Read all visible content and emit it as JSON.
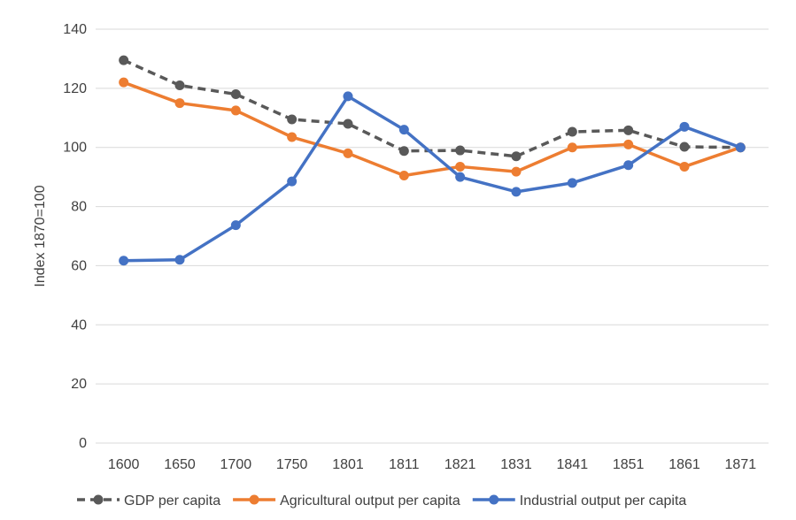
{
  "chart_data": {
    "type": "line",
    "title": "",
    "xlabel": "",
    "ylabel": "Index 1870=100",
    "ylim": [
      0,
      140
    ],
    "yticks": [
      0,
      20,
      40,
      60,
      80,
      100,
      120,
      140
    ],
    "grid": true,
    "legend_position": "bottom",
    "categories": [
      "1600",
      "1650",
      "1700",
      "1750",
      "1801",
      "1811",
      "1821",
      "1831",
      "1841",
      "1851",
      "1861",
      "1871"
    ],
    "series": [
      {
        "name": "GDP per capita",
        "color": "#595959",
        "dashed": true,
        "values": [
          129.5,
          121,
          118,
          109.5,
          108,
          98.8,
          99,
          97,
          105.3,
          105.8,
          100.2,
          100
        ]
      },
      {
        "name": "Agricultural output per capita",
        "color": "#ED7D31",
        "dashed": false,
        "values": [
          122,
          115,
          112.5,
          103.5,
          98,
          90.5,
          93.5,
          91.8,
          100,
          101,
          93.5,
          100
        ]
      },
      {
        "name": "Industrial output per capita",
        "color": "#4472C4",
        "dashed": false,
        "values": [
          61.7,
          62,
          73.7,
          88.5,
          117.3,
          106,
          90,
          85,
          88,
          94,
          107,
          100
        ]
      }
    ]
  }
}
